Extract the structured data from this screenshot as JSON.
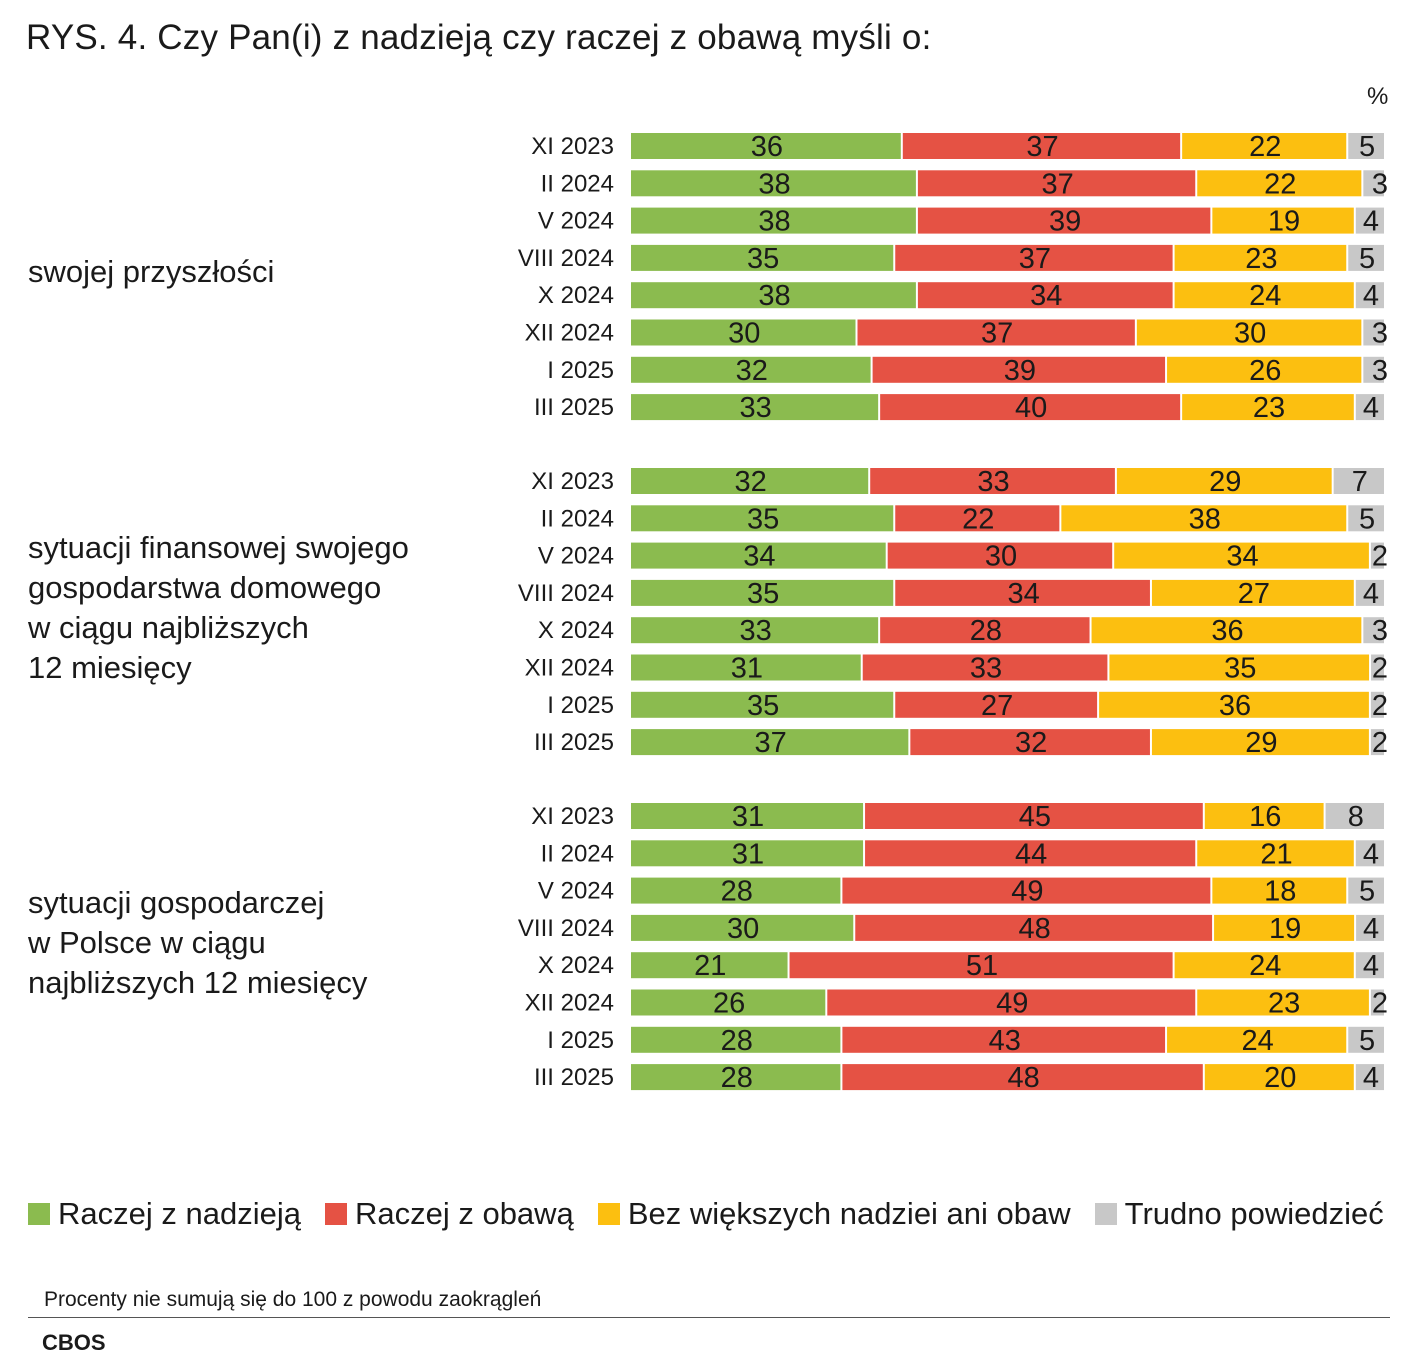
{
  "title": "RYS. 4. Czy Pan(i) z nadzieją czy raczej z obawą myśli o:",
  "unit": "%",
  "chart_data": {
    "type": "stacked-bar-horizontal",
    "title": "RYS. 4. Czy Pan(i) z nadzieją czy raczej z obawą myśli o:",
    "unit": "%",
    "series": [
      {
        "name": "Raczej z nadzieją",
        "color": "#8bbb4f"
      },
      {
        "name": "Raczej z obawą",
        "color": "#e55244"
      },
      {
        "name": "Bez większych nadziei ani obaw",
        "color": "#fcbf10"
      },
      {
        "name": "Trudno powiedzieć",
        "color": "#c8c8c8"
      }
    ],
    "groups": [
      {
        "label": "swojej przyszłości",
        "rows": [
          {
            "period": "XI 2023",
            "values": [
              36,
              37,
              22,
              5
            ]
          },
          {
            "period": "II 2024",
            "values": [
              38,
              37,
              22,
              3
            ]
          },
          {
            "period": "V 2024",
            "values": [
              38,
              39,
              19,
              4
            ]
          },
          {
            "period": "VIII 2024",
            "values": [
              35,
              37,
              23,
              5
            ]
          },
          {
            "period": "X 2024",
            "values": [
              38,
              34,
              24,
              4
            ]
          },
          {
            "period": "XII 2024",
            "values": [
              30,
              37,
              30,
              3
            ]
          },
          {
            "period": "I 2025",
            "values": [
              32,
              39,
              26,
              3
            ]
          },
          {
            "period": "III 2025",
            "values": [
              33,
              40,
              23,
              4
            ]
          }
        ]
      },
      {
        "label": "sytuacji finansowej swojego gospodarstwa domowego w ciągu najbliższych 12 miesięcy",
        "label_lines": [
          "sytuacji finansowej swojego",
          "gospodarstwa domowego",
          "w ciągu najbliższych",
          "12 miesięcy"
        ],
        "rows": [
          {
            "period": "XI 2023",
            "values": [
              32,
              33,
              29,
              7
            ]
          },
          {
            "period": "II 2024",
            "values": [
              35,
              22,
              38,
              5
            ]
          },
          {
            "period": "V 2024",
            "values": [
              34,
              30,
              34,
              2
            ]
          },
          {
            "period": "VIII 2024",
            "values": [
              35,
              34,
              27,
              4
            ]
          },
          {
            "period": "X 2024",
            "values": [
              33,
              28,
              36,
              3
            ]
          },
          {
            "period": "XII 2024",
            "values": [
              31,
              33,
              35,
              2
            ]
          },
          {
            "period": "I 2025",
            "values": [
              35,
              27,
              36,
              2
            ]
          },
          {
            "period": "III 2025",
            "values": [
              37,
              32,
              29,
              2
            ]
          }
        ]
      },
      {
        "label": "sytuacji gospodarczej w Polsce w ciągu najbliższych 12 miesięcy",
        "label_lines": [
          "sytuacji gospodarczej",
          "w Polsce w ciągu",
          "najbliższych 12 miesięcy"
        ],
        "rows": [
          {
            "period": "XI 2023",
            "values": [
              31,
              45,
              16,
              8
            ]
          },
          {
            "period": "II 2024",
            "values": [
              31,
              44,
              21,
              4
            ]
          },
          {
            "period": "V 2024",
            "values": [
              28,
              49,
              18,
              5
            ]
          },
          {
            "period": "VIII 2024",
            "values": [
              30,
              48,
              19,
              4
            ]
          },
          {
            "period": "X 2024",
            "values": [
              21,
              51,
              24,
              4
            ]
          },
          {
            "period": "XII 2024",
            "values": [
              26,
              49,
              23,
              2
            ]
          },
          {
            "period": "I 2025",
            "values": [
              28,
              43,
              24,
              5
            ]
          },
          {
            "period": "III 2025",
            "values": [
              28,
              48,
              20,
              4
            ]
          }
        ]
      }
    ]
  },
  "group_labels": [
    {
      "lines": [
        "swojej przyszłości"
      ]
    },
    {
      "lines": [
        "sytuacji finansowej swojego",
        "gospodarstwa domowego",
        "w ciągu najbliższych",
        "12 miesięcy"
      ]
    },
    {
      "lines": [
        "sytuacji gospodarczej",
        "w Polsce w ciągu",
        "najbliższych 12 miesięcy"
      ]
    }
  ],
  "legend": [
    {
      "label": "Raczej z nadzieją",
      "color": "#8bbb4f"
    },
    {
      "label": "Raczej z obawą",
      "color": "#e55244"
    },
    {
      "label": "Bez większych nadziei ani obaw",
      "color": "#fcbf10"
    },
    {
      "label": "Trudno powiedzieć",
      "color": "#c8c8c8"
    }
  ],
  "note": "Procenty nie sumują się do 100 z powodu zaokrągleń",
  "source": "CBOS"
}
